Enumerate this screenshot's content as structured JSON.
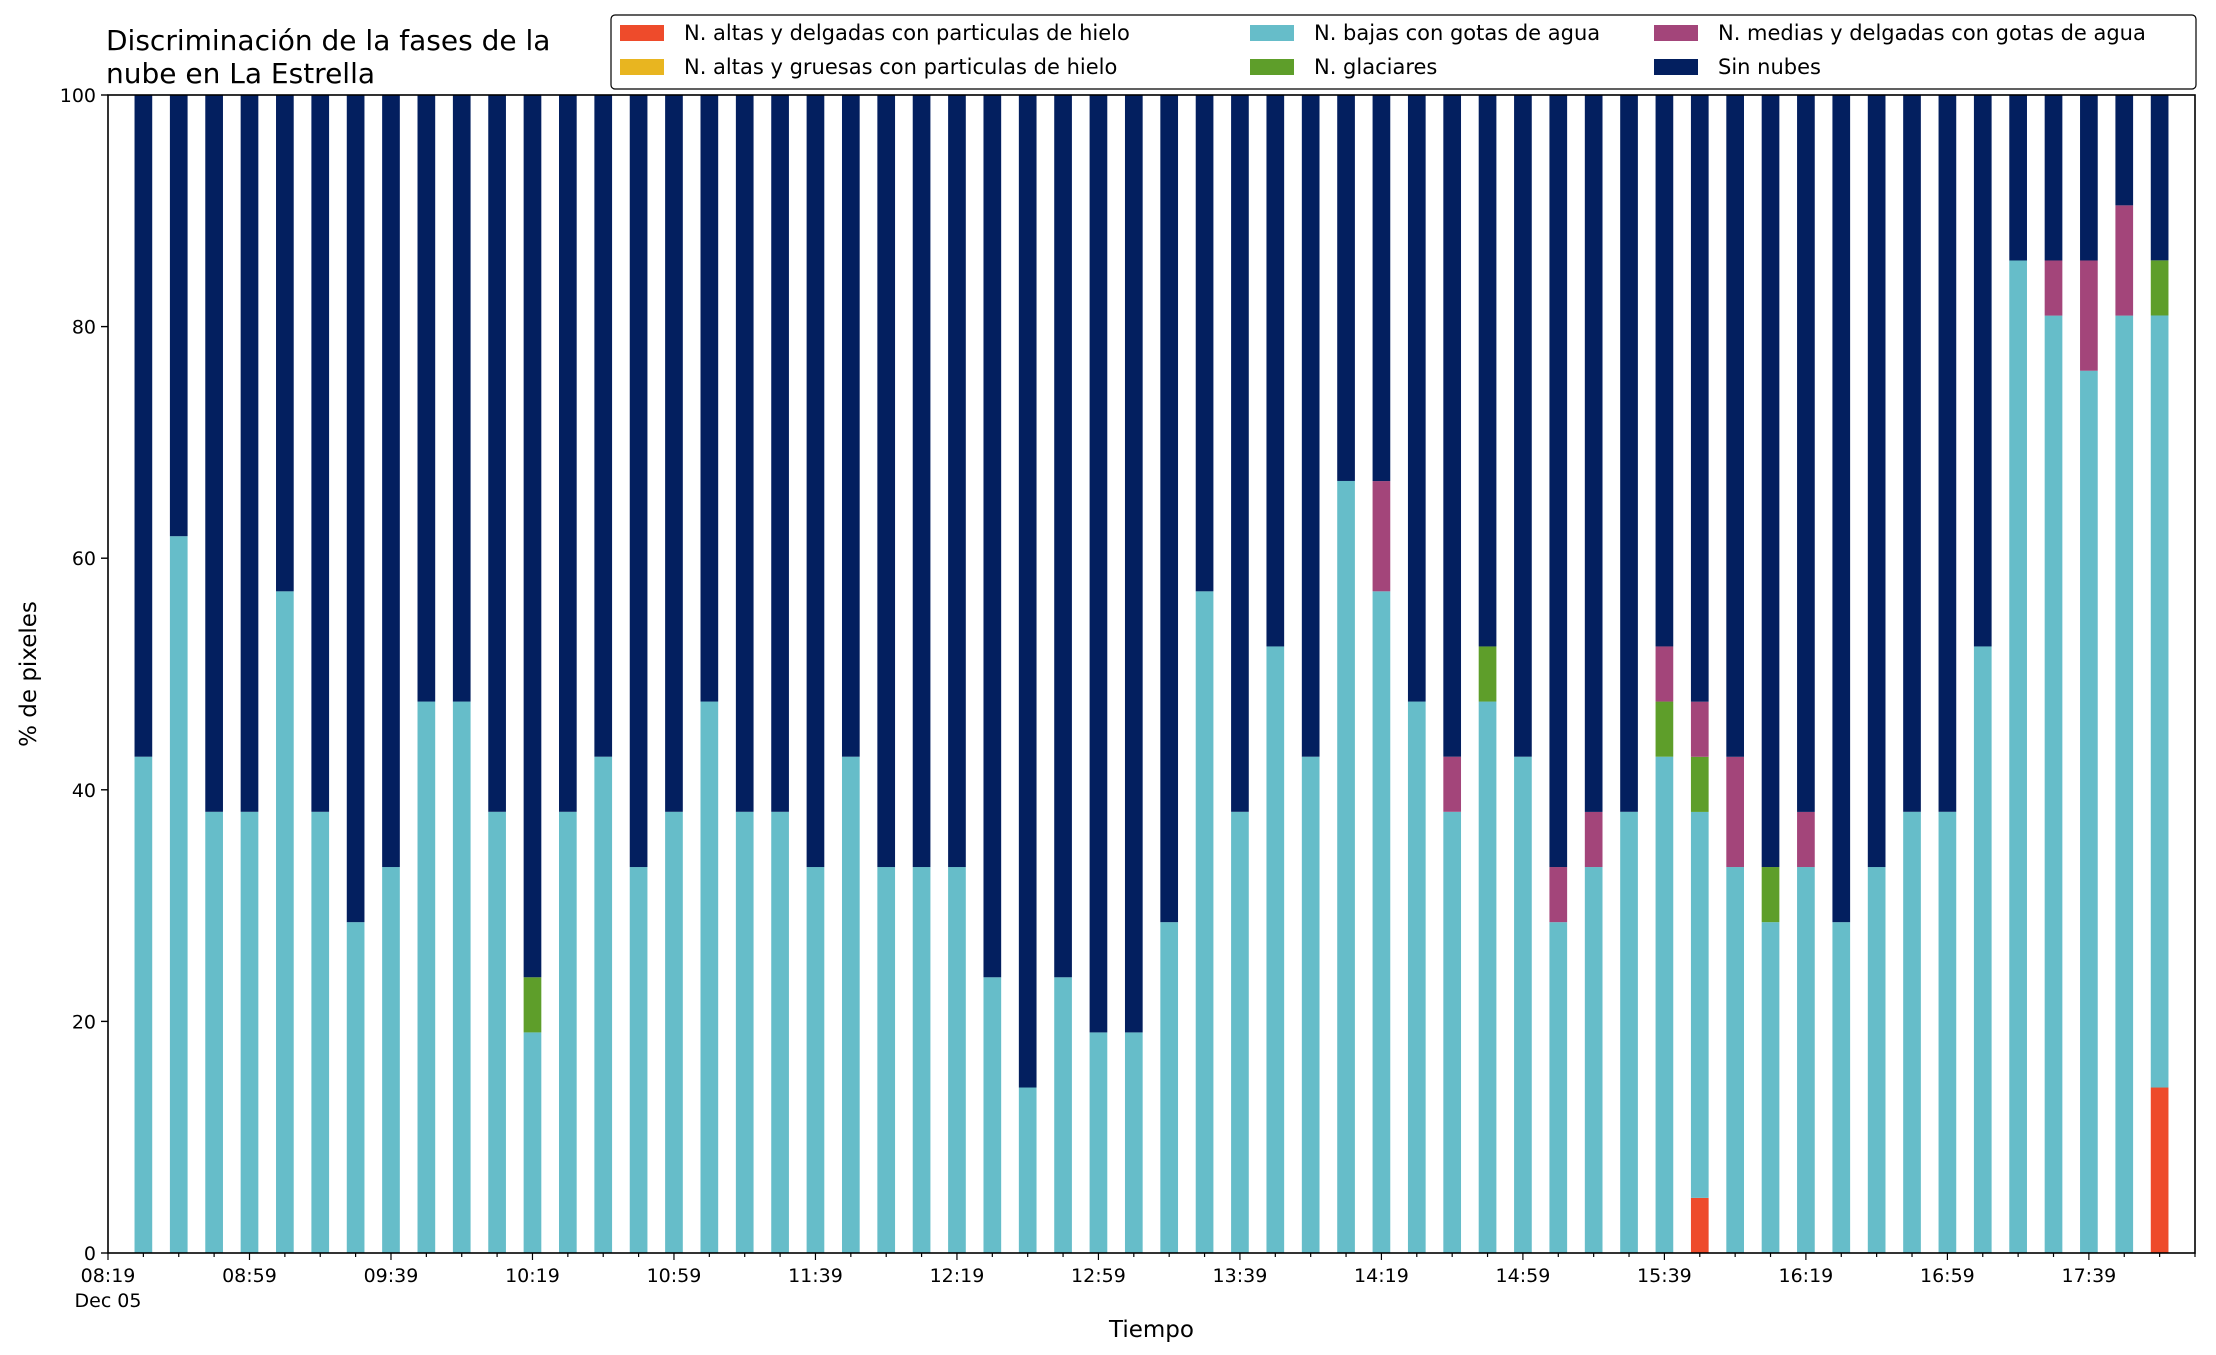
{
  "chart_data": {
    "type": "bar",
    "stacked": true,
    "title_lines": [
      "Discriminación de la fases de la",
      "nube en La Estrella"
    ],
    "xlabel": "Tiempo",
    "ylabel": "% de pixeles",
    "ylim": [
      0,
      100
    ],
    "yticks": [
      0,
      20,
      40,
      60,
      80,
      100
    ],
    "xtick_labels": [
      "08:19",
      "08:59",
      "09:39",
      "10:19",
      "10:59",
      "11:39",
      "12:19",
      "12:59",
      "13:39",
      "14:19",
      "14:59",
      "15:39",
      "16:19",
      "16:59",
      "17:39"
    ],
    "xtick_sublabel": "Dec 05",
    "start_time": "08:19",
    "interval_minutes": 10,
    "legend_position": "top-right",
    "series": [
      {
        "name": "N. altas y delgadas con particulas de hielo",
        "color": "#ee4b2b",
        "values": [
          0,
          0,
          0,
          0,
          0,
          0,
          0,
          0,
          0,
          0,
          0,
          0,
          0,
          0,
          0,
          0,
          0,
          0,
          0,
          0,
          0,
          0,
          0,
          0,
          0,
          0,
          0,
          0,
          0,
          0,
          0,
          0,
          0,
          0,
          0,
          0,
          0,
          0,
          0,
          0,
          0,
          0,
          0,
          0,
          4.76,
          0,
          0,
          0,
          0,
          0,
          0,
          0,
          0,
          0,
          0,
          0,
          0,
          14.29
        ]
      },
      {
        "name": "N. altas y gruesas con particulas de hielo",
        "color": "#e8b520",
        "values": [
          0,
          0,
          0,
          0,
          0,
          0,
          0,
          0,
          0,
          0,
          0,
          0,
          0,
          0,
          0,
          0,
          0,
          0,
          0,
          0,
          0,
          0,
          0,
          0,
          0,
          0,
          0,
          0,
          0,
          0,
          0,
          0,
          0,
          0,
          0,
          0,
          0,
          0,
          0,
          0,
          0,
          0,
          0,
          0,
          0,
          0,
          0,
          0,
          0,
          0,
          0,
          0,
          0,
          0,
          0,
          0,
          0,
          0
        ]
      },
      {
        "name": "N. bajas con gotas de agua",
        "color": "#66bdc9",
        "values": [
          42.86,
          61.9,
          38.1,
          38.1,
          57.14,
          38.1,
          28.57,
          33.33,
          47.62,
          47.62,
          38.1,
          19.05,
          38.1,
          42.86,
          33.33,
          38.1,
          47.62,
          38.1,
          38.1,
          33.33,
          42.86,
          33.33,
          33.33,
          33.33,
          23.81,
          14.29,
          23.81,
          19.05,
          19.05,
          28.57,
          57.14,
          38.1,
          52.38,
          42.86,
          66.67,
          57.14,
          47.62,
          38.1,
          47.62,
          42.86,
          28.57,
          33.33,
          38.1,
          42.86,
          33.33,
          33.33,
          28.57,
          33.33,
          28.57,
          33.33,
          38.1,
          38.1,
          52.38,
          85.71,
          80.95,
          76.19,
          80.95,
          66.67
        ]
      },
      {
        "name": "N. glaciares",
        "color": "#5e9e2a",
        "values": [
          0,
          0,
          0,
          0,
          0,
          0,
          0,
          0,
          0,
          0,
          0,
          4.76,
          0,
          0,
          0,
          0,
          0,
          0,
          0,
          0,
          0,
          0,
          0,
          0,
          0,
          0,
          0,
          0,
          0,
          0,
          0,
          0,
          0,
          0,
          0,
          0,
          0,
          0,
          4.76,
          0,
          0,
          0,
          0,
          4.76,
          4.76,
          0,
          4.76,
          0,
          0,
          0,
          0,
          0,
          0,
          0,
          0,
          0,
          0,
          4.76
        ]
      },
      {
        "name": "N. medias y delgadas con gotas de agua",
        "color": "#a3457a",
        "values": [
          0,
          0,
          0,
          0,
          0,
          0,
          0,
          0,
          0,
          0,
          0,
          0,
          0,
          0,
          0,
          0,
          0,
          0,
          0,
          0,
          0,
          0,
          0,
          0,
          0,
          0,
          0,
          0,
          0,
          0,
          0,
          0,
          0,
          0,
          0,
          9.52,
          0,
          4.76,
          0,
          0,
          4.76,
          4.76,
          0,
          4.76,
          4.76,
          9.52,
          0,
          4.76,
          0,
          0,
          0,
          0,
          0,
          0,
          4.76,
          9.52,
          9.52,
          0
        ]
      },
      {
        "name": "Sin nubes",
        "color": "#031f5f",
        "values": [
          57.14,
          38.1,
          61.9,
          61.9,
          42.86,
          61.9,
          71.43,
          66.67,
          52.38,
          52.38,
          61.9,
          76.19,
          61.9,
          57.14,
          66.67,
          61.9,
          52.38,
          61.9,
          61.9,
          66.67,
          57.14,
          66.67,
          66.67,
          66.67,
          76.19,
          85.71,
          76.19,
          80.95,
          80.95,
          71.43,
          42.86,
          61.9,
          47.62,
          57.14,
          33.33,
          33.33,
          52.38,
          57.14,
          47.62,
          57.14,
          66.67,
          61.9,
          61.9,
          47.62,
          52.38,
          57.14,
          66.67,
          61.9,
          71.43,
          66.67,
          61.9,
          61.9,
          47.62,
          14.29,
          14.29,
          14.29,
          9.52,
          14.29
        ]
      }
    ]
  }
}
